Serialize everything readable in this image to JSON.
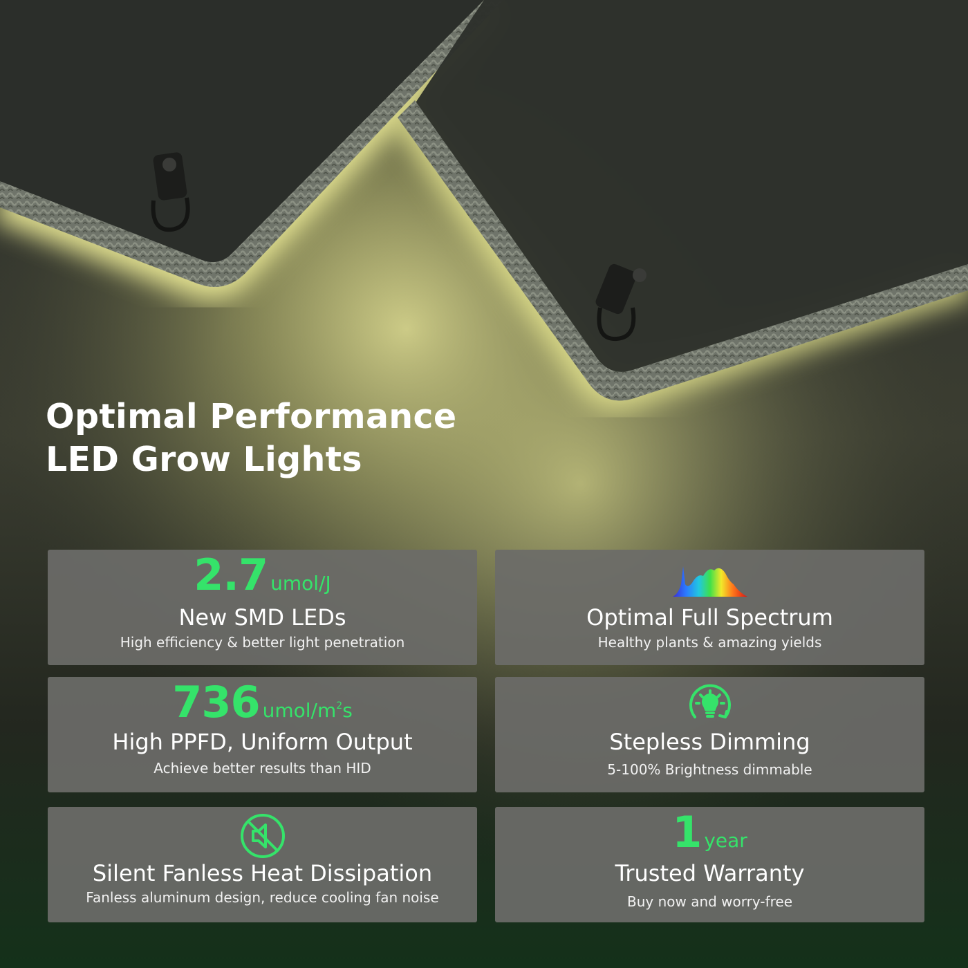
{
  "headline": {
    "line1": "Optimal Performance",
    "line2": "LED Grow Lights"
  },
  "colors": {
    "accent": "#35e36a",
    "card": "#6c6c68",
    "glow": "#f4f29a"
  },
  "features": [
    {
      "value": "2.7",
      "unit": "umol/J",
      "title": "New SMD LEDs",
      "subtitle": "High efficiency & better light penetration"
    },
    {
      "icon": "spectrum-icon",
      "title": "Optimal Full Spectrum",
      "subtitle": "Healthy plants & amazing yields"
    },
    {
      "value": "736",
      "unit": "umol/m",
      "unit_sup": "2",
      "unit_end": "s",
      "title": "High PPFD, Uniform Output",
      "subtitle": "Achieve better results than HID"
    },
    {
      "icon": "dimming-bulb-icon",
      "title": "Stepless Dimming",
      "subtitle": "5-100% Brightness dimmable"
    },
    {
      "icon": "silent-speaker-icon",
      "title": "Silent Fanless Heat Dissipation",
      "subtitle": "Fanless aluminum design, reduce cooling fan noise"
    },
    {
      "value": "1",
      "unit": "year",
      "title": "Trusted Warranty",
      "subtitle": "Buy now and worry-free"
    }
  ]
}
